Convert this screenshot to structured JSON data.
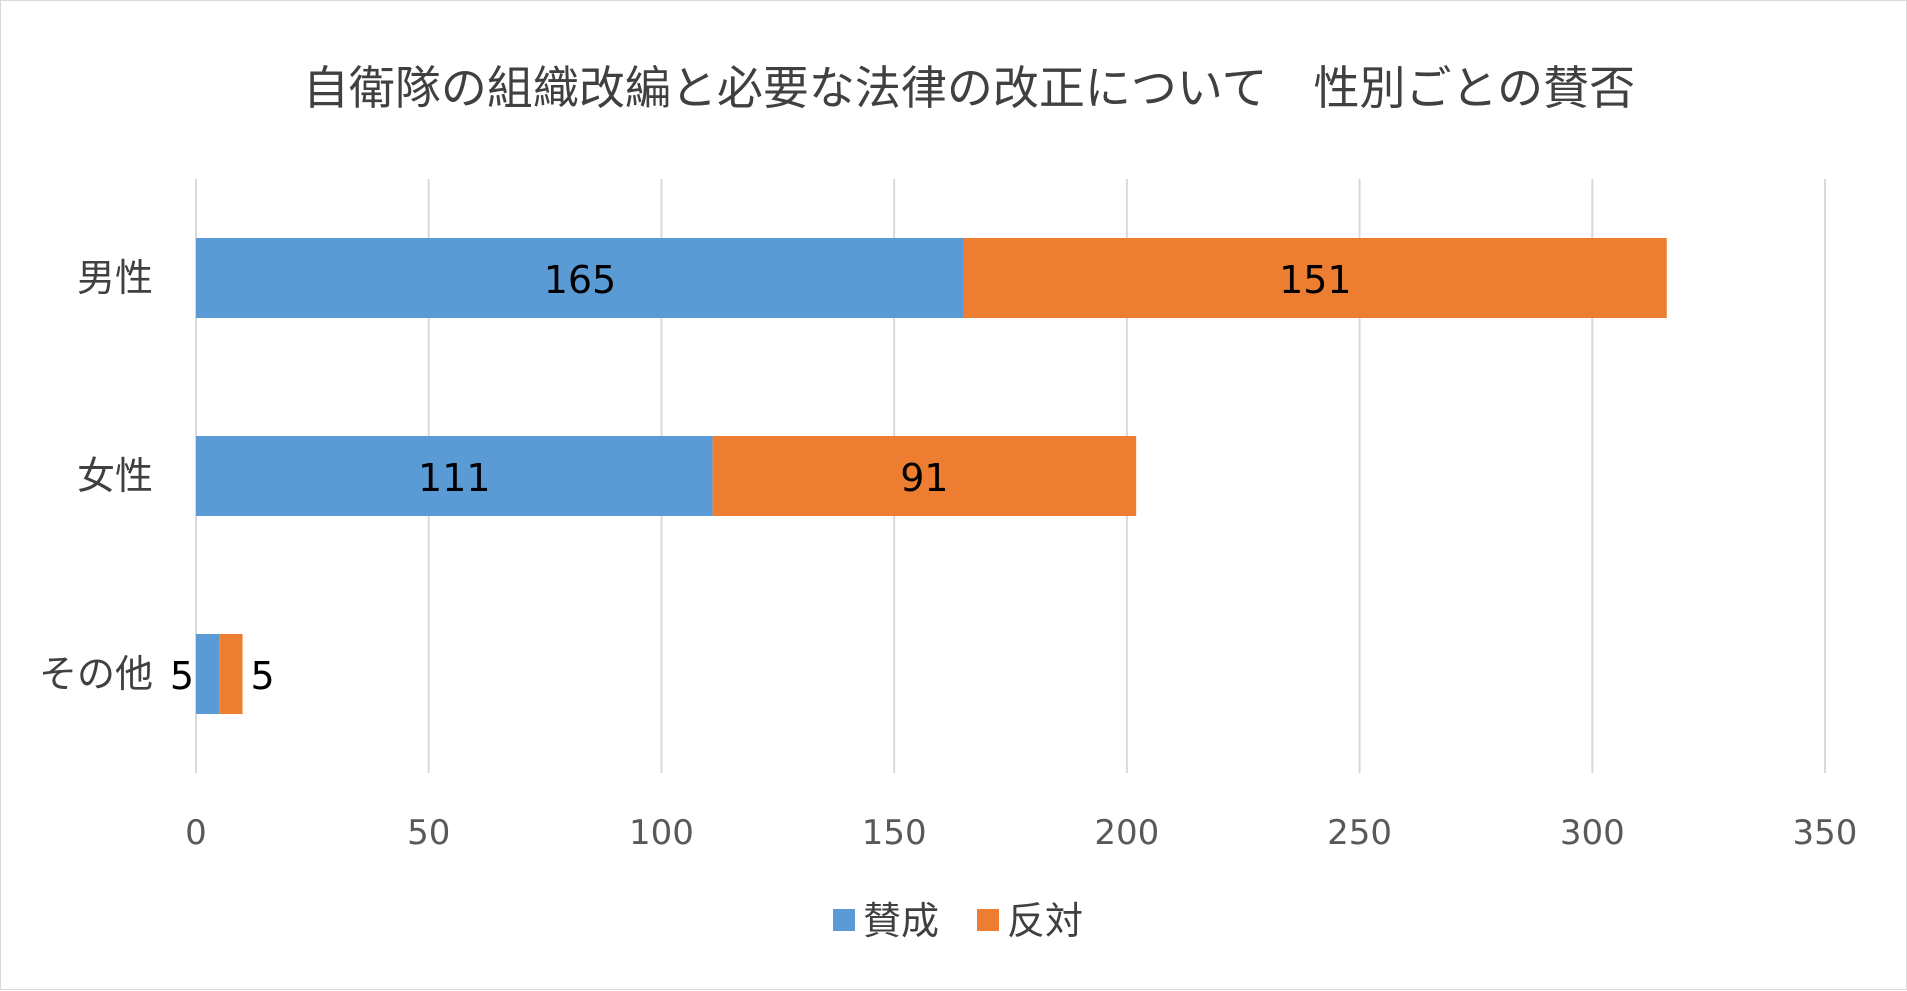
{
  "chart_data": {
    "type": "bar",
    "orientation": "horizontal",
    "stacked": true,
    "title": "自衛隊の組織改編と必要な法律の改正について　性別ごとの賛否",
    "categories": [
      "男性",
      "女性",
      "その他"
    ],
    "series": [
      {
        "name": "賛成",
        "color": "#5b9bd5",
        "values": [
          165,
          111,
          5
        ]
      },
      {
        "name": "反対",
        "color": "#ed7d31",
        "values": [
          151,
          91,
          5
        ]
      }
    ],
    "xlim": [
      0,
      350
    ],
    "xticks": [
      0,
      50,
      100,
      150,
      200,
      250,
      300,
      350
    ],
    "xlabel": "",
    "ylabel": "",
    "grid": true,
    "legend_position": "bottom"
  }
}
